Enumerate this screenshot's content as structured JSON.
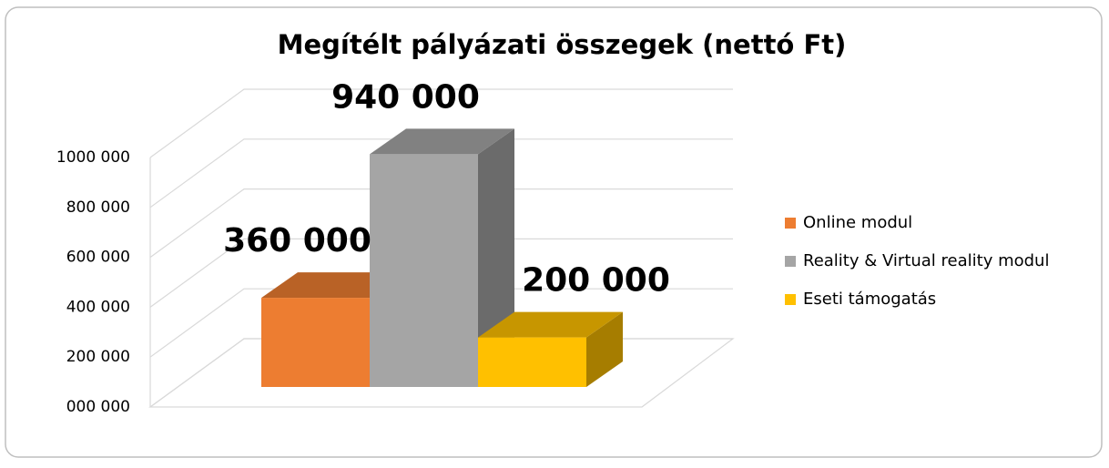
{
  "chart_data": {
    "type": "bar3d",
    "title": "Megítélt pályázati összegek (nettó Ft)",
    "categories": [
      null
    ],
    "series": [
      {
        "name": "Online modul",
        "color": "#ED7D31",
        "values": [
          360000
        ],
        "value_labels": [
          "360 000"
        ]
      },
      {
        "name": "Reality & Virtual reality modul",
        "color": "#A5A5A5",
        "values": [
          940000
        ],
        "value_labels": [
          "940 000"
        ]
      },
      {
        "name": "Eseti támogatás",
        "color": "#FFC000",
        "values": [
          200000
        ],
        "value_labels": [
          "200 000"
        ]
      }
    ],
    "ylim": [
      0,
      1000000
    ],
    "yticks": [
      {
        "value": 0,
        "label": "000 000"
      },
      {
        "value": 200000,
        "label": "200 000"
      },
      {
        "value": 400000,
        "label": "400 000"
      },
      {
        "value": 600000,
        "label": "600 000"
      },
      {
        "value": 800000,
        "label": "800 000"
      },
      {
        "value": 1000000,
        "label": "1000 000"
      }
    ],
    "grid": true,
    "legend": "right"
  }
}
